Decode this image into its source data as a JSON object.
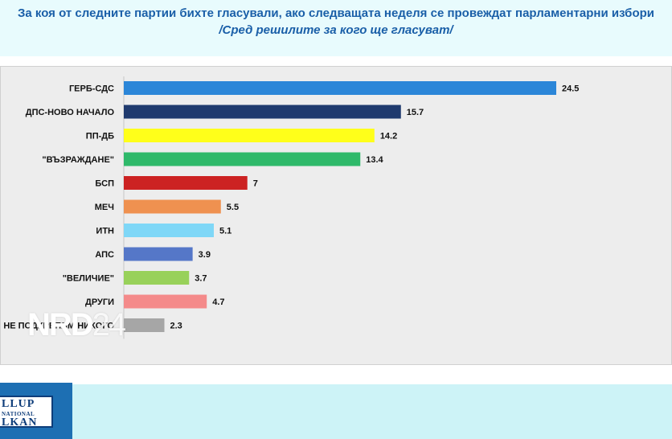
{
  "header": {
    "title_line1": "За коя от следните партии бихте  гласували,  ако следващата неделя се провеждат парламентарни избори",
    "title_line2": "/Сред решилите за кого ще гласуват/"
  },
  "watermark": {
    "text": "NRD",
    "number": "24"
  },
  "logo": {
    "top": "LLUP",
    "mid": "NATIONAL",
    "bottom": "LKAN"
  },
  "colors": {
    "header_bg": "#e8fbfd",
    "title": "#1a5fa8",
    "footer_bg": "#cdf3f7",
    "logo_blue": "#1d6fb3"
  },
  "chart_data": {
    "type": "bar",
    "orientation": "horizontal",
    "categories": [
      "ГЕРБ-СДС",
      "ДПС-НОВО НАЧАЛО",
      "ПП-ДБ",
      "\"ВЪЗРАЖДАНЕ\"",
      "БСП",
      "МЕЧ",
      "ИТН",
      "АПС",
      "\"ВЕЛИЧИЕ\"",
      "ДРУГИ",
      "НЕ ПОДКРЕПЯМ НИКОГО"
    ],
    "values": [
      24.5,
      15.7,
      14.2,
      13.4,
      7,
      5.5,
      5.1,
      3.9,
      3.7,
      4.7,
      2.3
    ],
    "value_labels": [
      "24.5",
      "15.7",
      "14.2",
      "13.4",
      "7",
      "5.5",
      "5.1",
      "3.9",
      "3.7",
      "4.7",
      "2.3"
    ],
    "bar_colors": [
      "#2b86d8",
      "#1f3a6e",
      "#ffff1a",
      "#2fb96a",
      "#cc2222",
      "#ef9150",
      "#7fd7f7",
      "#5577c8",
      "#98d15a",
      "#f48a8a",
      "#a6a6a6"
    ],
    "grid": false,
    "legend": "none"
  }
}
